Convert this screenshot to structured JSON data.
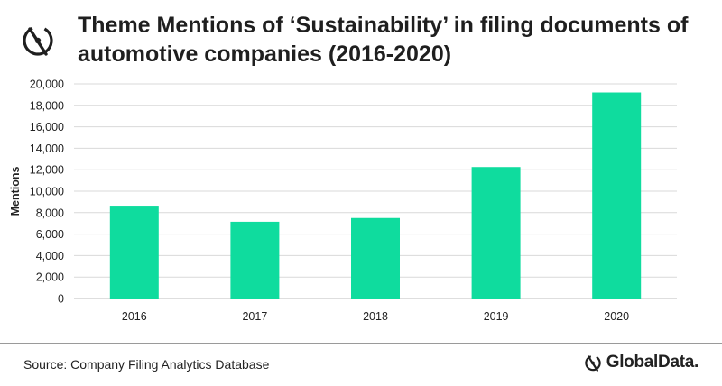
{
  "header": {
    "title_line1": "Theme Mentions of ‘Sustainability’ in filing documents of",
    "title_line2": "automotive companies (2016-2020)"
  },
  "footer": {
    "source": "Source: Company Filing Analytics Database",
    "brand": "GlobalData."
  },
  "icons": {
    "logo": "globaldata-logo-icon"
  },
  "colors": {
    "bar": "#0fdc9e",
    "grid": "#d9d9d9",
    "text": "#222222"
  },
  "chart_data": {
    "type": "bar",
    "title": "Theme Mentions of ‘Sustainability’ in filing documents of automotive companies (2016-2020)",
    "categories": [
      "2016",
      "2017",
      "2018",
      "2019",
      "2020"
    ],
    "values": [
      8650,
      7150,
      7500,
      12250,
      19200
    ],
    "xlabel": "",
    "ylabel": "Mentions",
    "ylim": [
      0,
      20000
    ],
    "yticks": [
      0,
      2000,
      4000,
      6000,
      8000,
      10000,
      12000,
      14000,
      16000,
      18000,
      20000
    ],
    "ytick_labels": [
      "0",
      "2,000",
      "4,000",
      "6,000",
      "8,000",
      "10,000",
      "12,000",
      "14,000",
      "16,000",
      "18,000",
      "20,000"
    ],
    "grid": true,
    "legend": "none"
  }
}
